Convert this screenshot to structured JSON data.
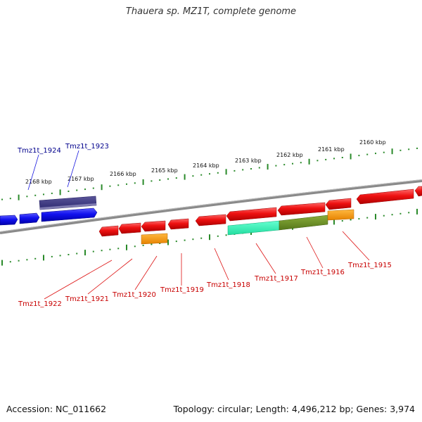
{
  "title": "Thauera sp. MZ1T, complete genome",
  "footer": {
    "accession": "Accession: NC_011662",
    "summary": "Topology: circular; Length: 4,496,212 bp; Genes: 3,974"
  },
  "scale_ticks": [
    "2168 kbp",
    "2167 kbp",
    "2166 kbp",
    "2165 kbp",
    "2164 kbp",
    "2163 kbp",
    "2162 kbp",
    "2161 kbp",
    "2160 kbp"
  ],
  "gene_labels": {
    "forward": [
      "Tmz1t_1924",
      "Tmz1t_1923"
    ],
    "reverse": [
      "Tmz1t_1922",
      "Tmz1t_1921",
      "Tmz1t_1920",
      "Tmz1t_1919",
      "Tmz1t_1918",
      "Tmz1t_1917",
      "Tmz1t_1916",
      "Tmz1t_1915"
    ]
  },
  "colors": {
    "forward_gene": "#1010e0",
    "reverse_gene": "#e81010",
    "forward_feature": "#3a3580",
    "orange_feature": "#ff9900",
    "green_feature": "#6b8e23",
    "teal_feature": "#33ffbb",
    "forward_label": "#000099",
    "reverse_label": "#cc0000",
    "tick": "#2a8a2a",
    "backbone": "#808080"
  }
}
